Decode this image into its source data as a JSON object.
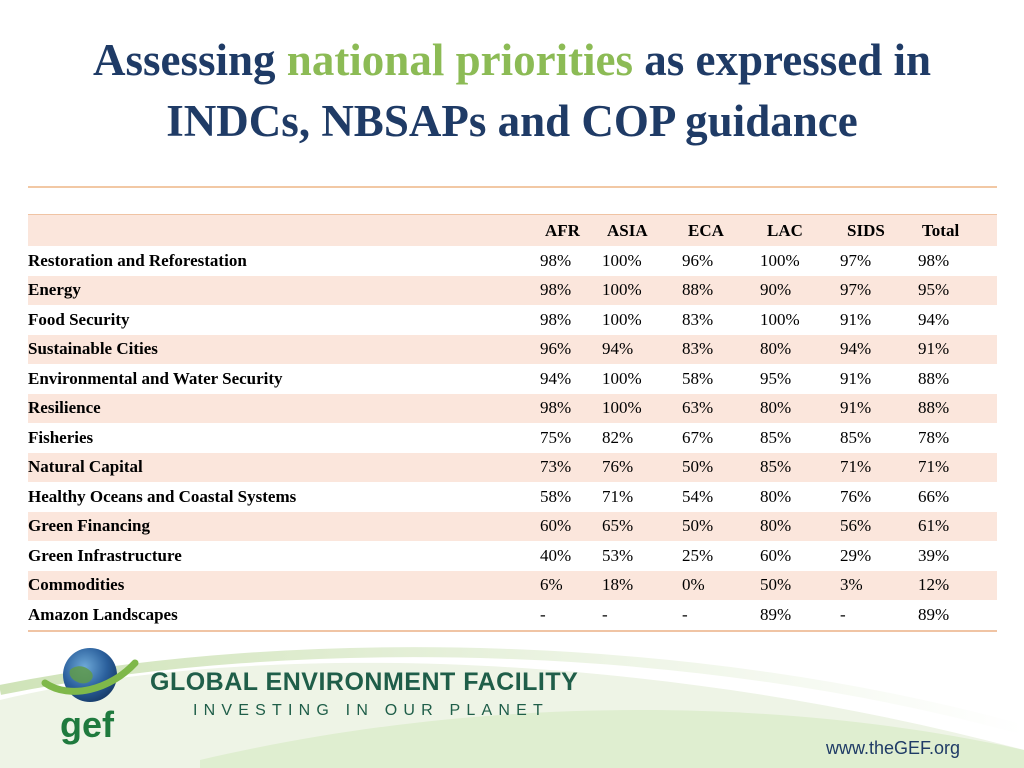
{
  "slide": {
    "title_part1": "Assessing",
    "title_highlight": "national priorities",
    "title_part2": "as expressed in",
    "title_line2": "INDCs, NBSAPs and COP guidance"
  },
  "table": {
    "columns": [
      "AFR",
      "ASIA",
      "ECA",
      "LAC",
      "SIDS",
      "Total"
    ],
    "rows": [
      {
        "label": "Restoration and Reforestation",
        "values": [
          "98%",
          "100%",
          "96%",
          "100%",
          "97%",
          "98%"
        ]
      },
      {
        "label": "Energy",
        "values": [
          "98%",
          "100%",
          "88%",
          "90%",
          "97%",
          "95%"
        ]
      },
      {
        "label": "Food Security",
        "values": [
          "98%",
          "100%",
          "83%",
          "100%",
          "91%",
          "94%"
        ]
      },
      {
        "label": "Sustainable Cities",
        "values": [
          "96%",
          "94%",
          "83%",
          "80%",
          "94%",
          "91%"
        ]
      },
      {
        "label": "Environmental and Water Security",
        "values": [
          "94%",
          "100%",
          "58%",
          "95%",
          "91%",
          "88%"
        ]
      },
      {
        "label": "Resilience",
        "values": [
          "98%",
          "100%",
          "63%",
          "80%",
          "91%",
          "88%"
        ]
      },
      {
        "label": "Fisheries",
        "values": [
          "75%",
          "82%",
          "67%",
          "85%",
          "85%",
          "78%"
        ]
      },
      {
        "label": "Natural Capital",
        "values": [
          "73%",
          "76%",
          "50%",
          "85%",
          "71%",
          "71%"
        ]
      },
      {
        "label": "Healthy Oceans and Coastal Systems",
        "values": [
          "58%",
          "71%",
          "54%",
          "80%",
          "76%",
          "66%"
        ]
      },
      {
        "label": "Green Financing",
        "values": [
          "60%",
          "65%",
          "50%",
          "80%",
          "56%",
          "61%"
        ]
      },
      {
        "label": "Green Infrastructure",
        "values": [
          "40%",
          "53%",
          "25%",
          "60%",
          "29%",
          "39%"
        ]
      },
      {
        "label": "Commodities",
        "values": [
          "6%",
          "18%",
          "0%",
          "50%",
          "3%",
          "12%"
        ]
      },
      {
        "label": "Amazon Landscapes",
        "values": [
          "-",
          "-",
          "-",
          "89%",
          "-",
          "89%"
        ]
      }
    ]
  },
  "footer": {
    "logo_text": "gef",
    "org_name": "GLOBAL ENVIRONMENT FACILITY",
    "tagline": "INVESTING IN OUR PLANET",
    "website": "www.theGEF.org"
  },
  "colors": {
    "title_blue": "#1f3b66",
    "title_green": "#8cbb55",
    "row_tint": "#fbe6dc",
    "rule_orange": "#f0c4a4",
    "org_green": "#1f5e49"
  }
}
